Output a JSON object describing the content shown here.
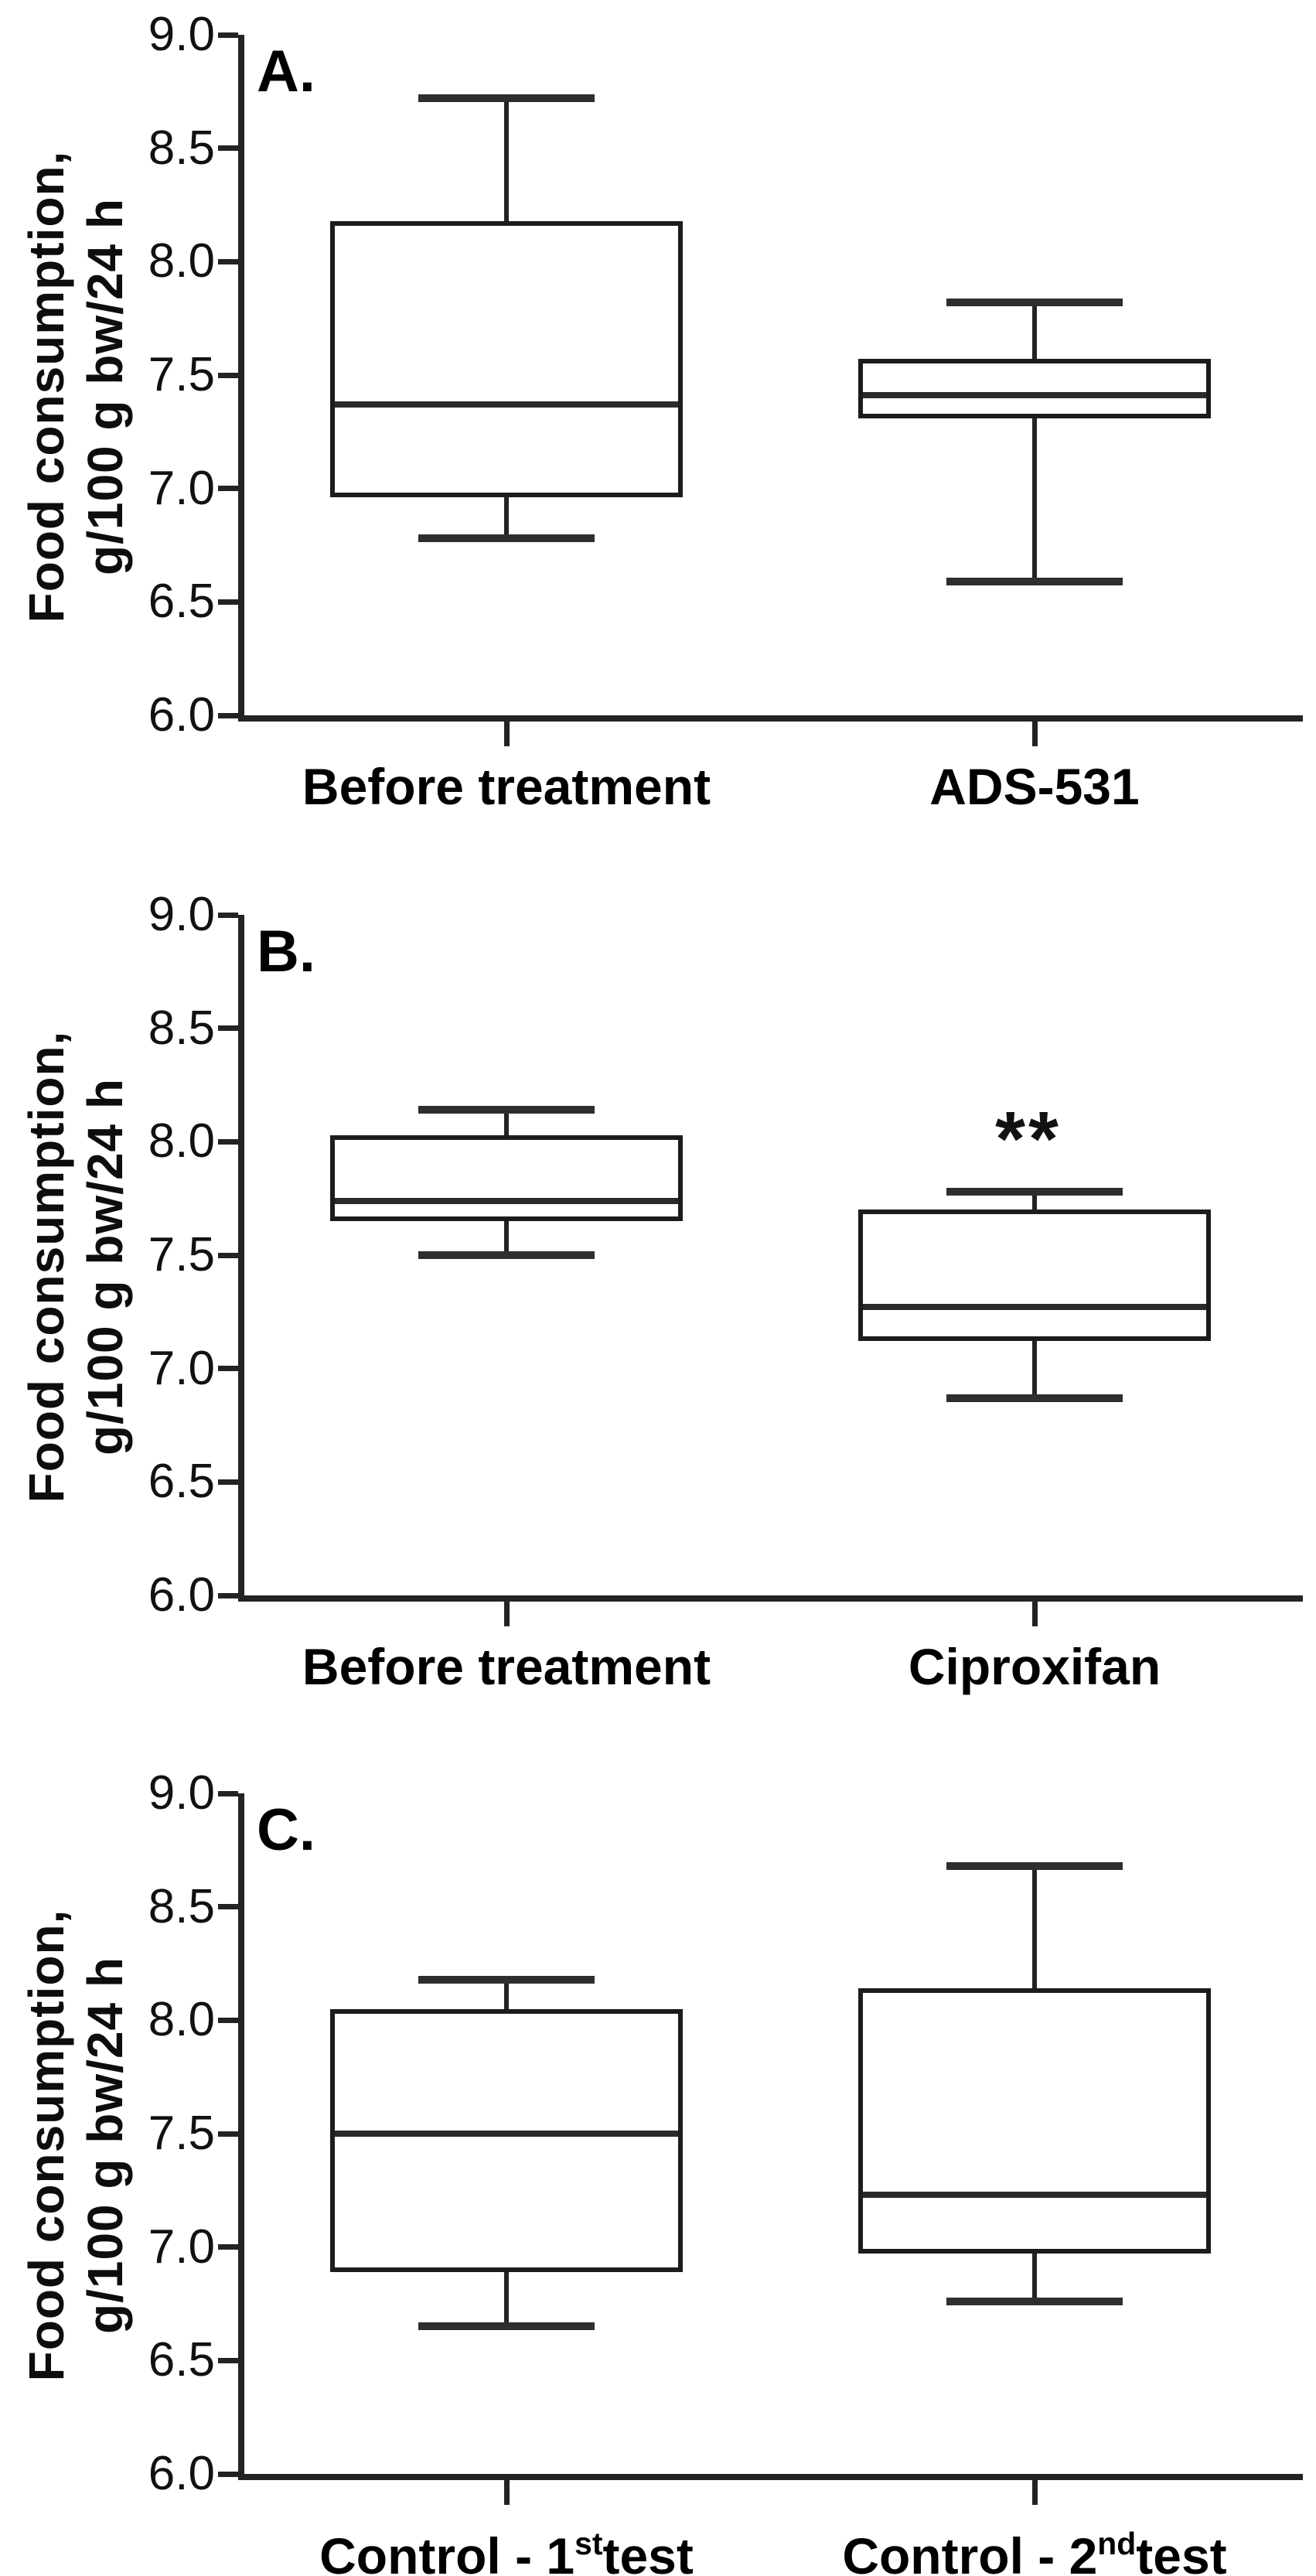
{
  "figure": {
    "y_axis_title_line1": "Food consumption,",
    "y_axis_title_line2": "g/100 g bw/24 h",
    "background": "#ffffff",
    "line_color": "#232323",
    "text_color": "#0d0d0d"
  },
  "chart_data": [
    {
      "type": "box",
      "panel_label": "A.",
      "ylabel": "Food consumption, g/100 g bw/24 h",
      "ylim": [
        6.0,
        9.0
      ],
      "yticks": [
        "9.0",
        "8.5",
        "8.0",
        "7.5",
        "7.0",
        "6.5",
        "6.0"
      ],
      "grid": false,
      "legend": null,
      "categories": [
        "Before treatment",
        "ADS-531"
      ],
      "category_parts": [
        [
          {
            "t": "Before treatment"
          }
        ],
        [
          {
            "t": "ADS-531"
          }
        ]
      ],
      "boxes": [
        {
          "category": "Before treatment",
          "min": 6.78,
          "q1": 6.96,
          "median": 7.37,
          "q3": 8.18,
          "max": 8.72
        },
        {
          "category": "ADS-531",
          "min": 6.59,
          "q1": 7.31,
          "median": 7.41,
          "q3": 7.57,
          "max": 7.82
        }
      ],
      "annotations": []
    },
    {
      "type": "box",
      "panel_label": "B.",
      "ylabel": "Food consumption, g/100 g bw/24 h",
      "ylim": [
        6.0,
        9.0
      ],
      "yticks": [
        "9.0",
        "8.5",
        "8.0",
        "7.5",
        "7.0",
        "6.5",
        "6.0"
      ],
      "grid": false,
      "legend": null,
      "categories": [
        "Before treatment",
        "Ciproxifan"
      ],
      "category_parts": [
        [
          {
            "t": "Before treatment"
          }
        ],
        [
          {
            "t": "Ciproxifan"
          }
        ]
      ],
      "boxes": [
        {
          "category": "Before treatment",
          "min": 7.5,
          "q1": 7.65,
          "median": 7.74,
          "q3": 8.03,
          "max": 8.14
        },
        {
          "category": "Ciproxifan",
          "min": 6.87,
          "q1": 7.12,
          "median": 7.27,
          "q3": 7.7,
          "max": 7.78
        }
      ],
      "annotations": [
        {
          "text": "**",
          "box_index": 1,
          "position": "above-max"
        }
      ]
    },
    {
      "type": "box",
      "panel_label": "C.",
      "ylabel": "Food consumption, g/100 g bw/24 h",
      "ylim": [
        6.0,
        9.0
      ],
      "yticks": [
        "9.0",
        "8.5",
        "8.0",
        "7.5",
        "7.0",
        "6.5",
        "6.0"
      ],
      "grid": false,
      "legend": null,
      "categories": [
        "Control - 1st test",
        "Control - 2nd test"
      ],
      "category_parts": [
        [
          {
            "t": "Control - 1"
          },
          {
            "sup": "st"
          },
          {
            "t": "test"
          }
        ],
        [
          {
            "t": "Control - 2"
          },
          {
            "sup": "nd"
          },
          {
            "t": "test"
          }
        ]
      ],
      "boxes": [
        {
          "category": "Control - 1st test",
          "min": 6.65,
          "q1": 6.89,
          "median": 7.5,
          "q3": 8.05,
          "max": 8.18
        },
        {
          "category": "Control - 2nd test",
          "min": 6.76,
          "q1": 6.97,
          "median": 7.23,
          "q3": 8.14,
          "max": 8.68
        }
      ],
      "annotations": []
    }
  ]
}
